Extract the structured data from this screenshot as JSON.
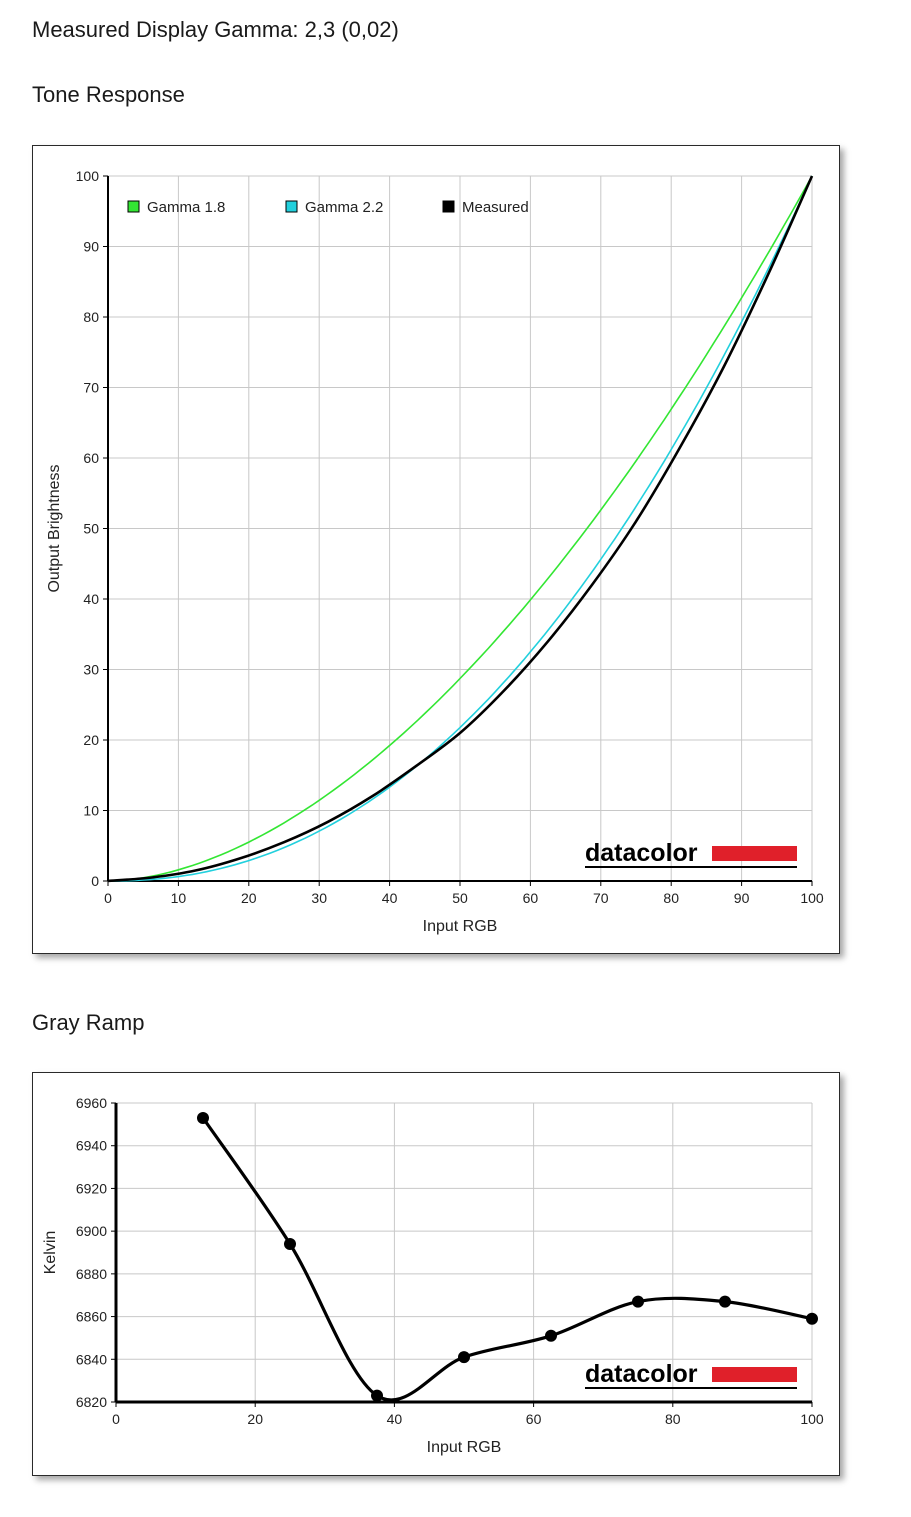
{
  "header": {
    "gamma_text": "Measured Display Gamma: 2,3 (0,02)",
    "tone_title": "Tone Response",
    "gray_title": "Gray Ramp"
  },
  "brand": {
    "logo_text": "datacolor",
    "logo_color": "#e0202a"
  },
  "colors": {
    "gamma18": "#33e633",
    "gamma22": "#22d0dd",
    "measured": "#000000",
    "grid": "#c8c8c8"
  },
  "chart_data": [
    {
      "type": "line",
      "title": "Tone Response",
      "xlabel": "Input RGB",
      "ylabel": "Output Brightness",
      "xlim": [
        0,
        100
      ],
      "ylim": [
        0,
        100
      ],
      "xticks": [
        0,
        10,
        20,
        30,
        40,
        50,
        60,
        70,
        80,
        90,
        100
      ],
      "yticks": [
        0,
        10,
        20,
        30,
        40,
        50,
        60,
        70,
        80,
        90,
        100
      ],
      "grid": true,
      "legend_position": "top-left",
      "series": [
        {
          "name": "Gamma 1.8",
          "gamma": 1.8
        },
        {
          "name": "Gamma 2.2",
          "gamma": 2.2
        },
        {
          "name": "Measured",
          "x": [
            0,
            6.25,
            12.5,
            18.75,
            25,
            31.25,
            37.5,
            43.75,
            50,
            56.25,
            62.5,
            68.75,
            75,
            81.25,
            87.5,
            93.75,
            100
          ],
          "values": [
            0,
            0.5,
            1.5,
            3.2,
            5.5,
            8.4,
            12.0,
            16.3,
            21.0,
            27.0,
            34.0,
            42.0,
            51.0,
            61.5,
            73.0,
            86.0,
            100
          ]
        }
      ]
    },
    {
      "type": "line",
      "title": "Gray Ramp",
      "xlabel": "Input RGB",
      "ylabel": "Kelvin",
      "xlim": [
        0,
        100
      ],
      "ylim": [
        6820,
        6960
      ],
      "xticks": [
        0,
        20,
        40,
        60,
        80,
        100
      ],
      "yticks": [
        6820,
        6840,
        6860,
        6880,
        6900,
        6920,
        6940,
        6960
      ],
      "grid": true,
      "series": [
        {
          "x": [
            12.5,
            25,
            37.5,
            50,
            62.5,
            75,
            87.5,
            100
          ],
          "values": [
            6953,
            6894,
            6823,
            6841,
            6851,
            6867,
            6867,
            6859
          ]
        }
      ]
    }
  ]
}
